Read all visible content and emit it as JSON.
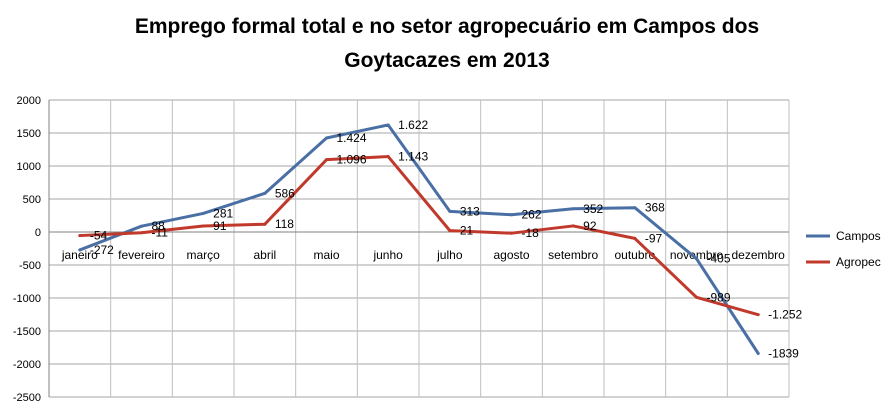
{
  "chart_data": {
    "type": "line",
    "title_lines": [
      "Emprego formal  total e no setor agropecuário em Campos dos",
      "Goytacazes em 2013"
    ],
    "xlabel": "",
    "ylabel": "",
    "categories": [
      "janeiro",
      "fevereiro",
      "março",
      "abril",
      "maio",
      "junho",
      "julho",
      "agosto",
      "setembro",
      "outubro",
      "novembro",
      "dezembro"
    ],
    "ylim": [
      -2500,
      2000
    ],
    "yticks": [
      2000,
      1500,
      1000,
      500,
      0,
      -500,
      -1000,
      -1500,
      -2000,
      -2500
    ],
    "ytick_labels": [
      "2000",
      "1500",
      "1000",
      "500",
      "0",
      "-500",
      "-1000",
      "-1500",
      "-2000",
      "-2500"
    ],
    "grid": true,
    "legend_position": "right",
    "series": [
      {
        "name": "Campos",
        "color": "#4a6fa5",
        "values": [
          -272,
          88,
          281,
          586,
          1424,
          1622,
          313,
          262,
          352,
          368,
          -405,
          -1839
        ],
        "labels": [
          "-272",
          "88",
          "281",
          "586",
          "1.424",
          "1.622",
          "313",
          "262",
          "352",
          "368",
          "-405",
          "-1839"
        ]
      },
      {
        "name": "Agropec",
        "color": "#c0392b",
        "values": [
          -54,
          -11,
          91,
          118,
          1096,
          1143,
          21,
          -18,
          92,
          -97,
          -989,
          -1252
        ],
        "labels": [
          "-54",
          "-11",
          "91",
          "118",
          "1.096",
          "1.143",
          "21",
          "-18",
          "92",
          "-97",
          "-989",
          "-1.252"
        ]
      }
    ]
  }
}
